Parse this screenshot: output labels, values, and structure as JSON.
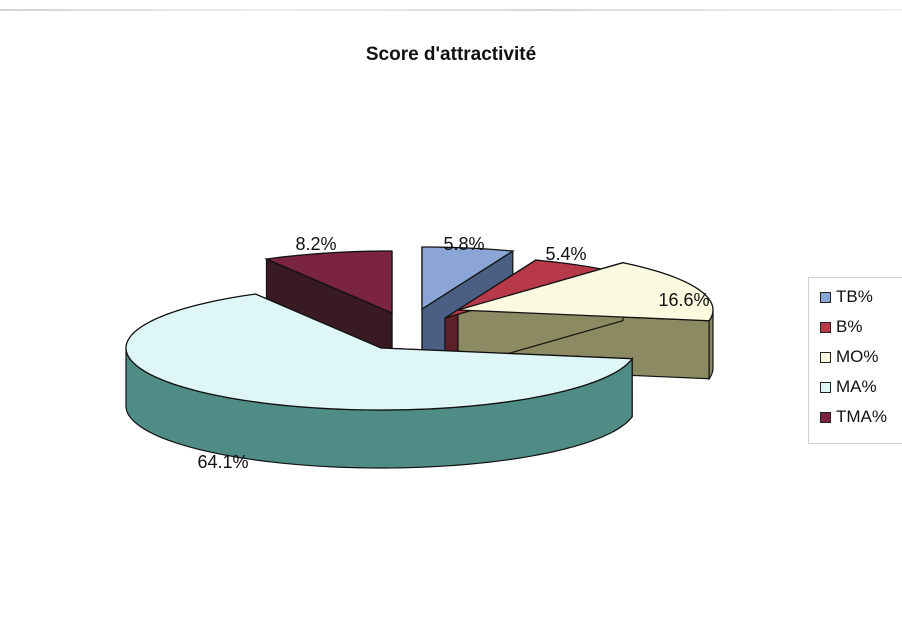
{
  "chart_data": {
    "type": "pie",
    "title": "Score d'attractivité",
    "labels": [
      "TB%",
      "B%",
      "MO%",
      "MA%",
      "TMA%"
    ],
    "values": [
      5.8,
      5.4,
      16.6,
      64.1,
      8.2
    ],
    "data_labels": [
      "5.8%",
      "5.4%",
      "16.6%",
      "64.1%",
      "8.2%"
    ],
    "colors": [
      "#8ba6d6",
      "#b8394a",
      "#fafae0",
      "#dff6f6",
      "#7a2440"
    ],
    "side_colors": [
      "#4a5f83",
      "#5e2028",
      "#8b8a62",
      "#4f8c86",
      "#3a1a22"
    ],
    "legend_position": "right",
    "style": "3d-exploded"
  }
}
